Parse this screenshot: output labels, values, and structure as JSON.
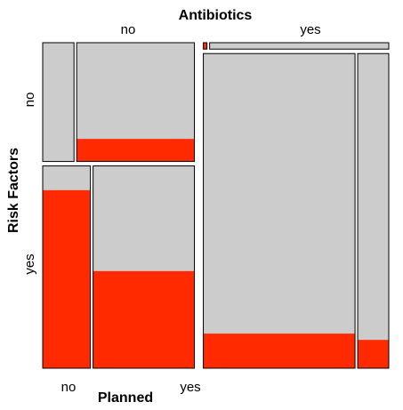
{
  "chart_data": {
    "type": "mosaic",
    "title": "Antibiotics",
    "xlabel": "Planned",
    "ylabel": "Risk Factors",
    "top_levels": [
      "no",
      "yes"
    ],
    "left_levels": [
      "no",
      "yes"
    ],
    "bottom_levels": [
      "no",
      "yes"
    ],
    "antibiotics_share": [
      0.45,
      0.55
    ],
    "fill_meaning": "red share of each tile (proportion of the outcome)",
    "cells": [
      {
        "antibiotics": "no",
        "risk_factors": "no",
        "risk_share": 0.37,
        "planned_share": [
          0.21,
          0.79
        ],
        "red_fraction": [
          0.0,
          0.19
        ]
      },
      {
        "antibiotics": "no",
        "risk_factors": "yes",
        "risk_share": 0.63,
        "planned_share": [
          0.32,
          0.68
        ],
        "red_fraction": [
          0.88,
          0.48
        ]
      },
      {
        "antibiotics": "yes",
        "risk_factors": "no",
        "risk_share": 0.02,
        "planned_share": [
          0.02,
          0.98
        ],
        "red_fraction": [
          1.0,
          0.0
        ]
      },
      {
        "antibiotics": "yes",
        "risk_factors": "yes",
        "risk_share": 0.98,
        "planned_share": [
          0.83,
          0.17
        ],
        "red_fraction": [
          0.11,
          0.09
        ]
      }
    ],
    "colors": {
      "outcome": "#ff2a00",
      "rest": "#cccccc",
      "border": "#000000"
    }
  }
}
